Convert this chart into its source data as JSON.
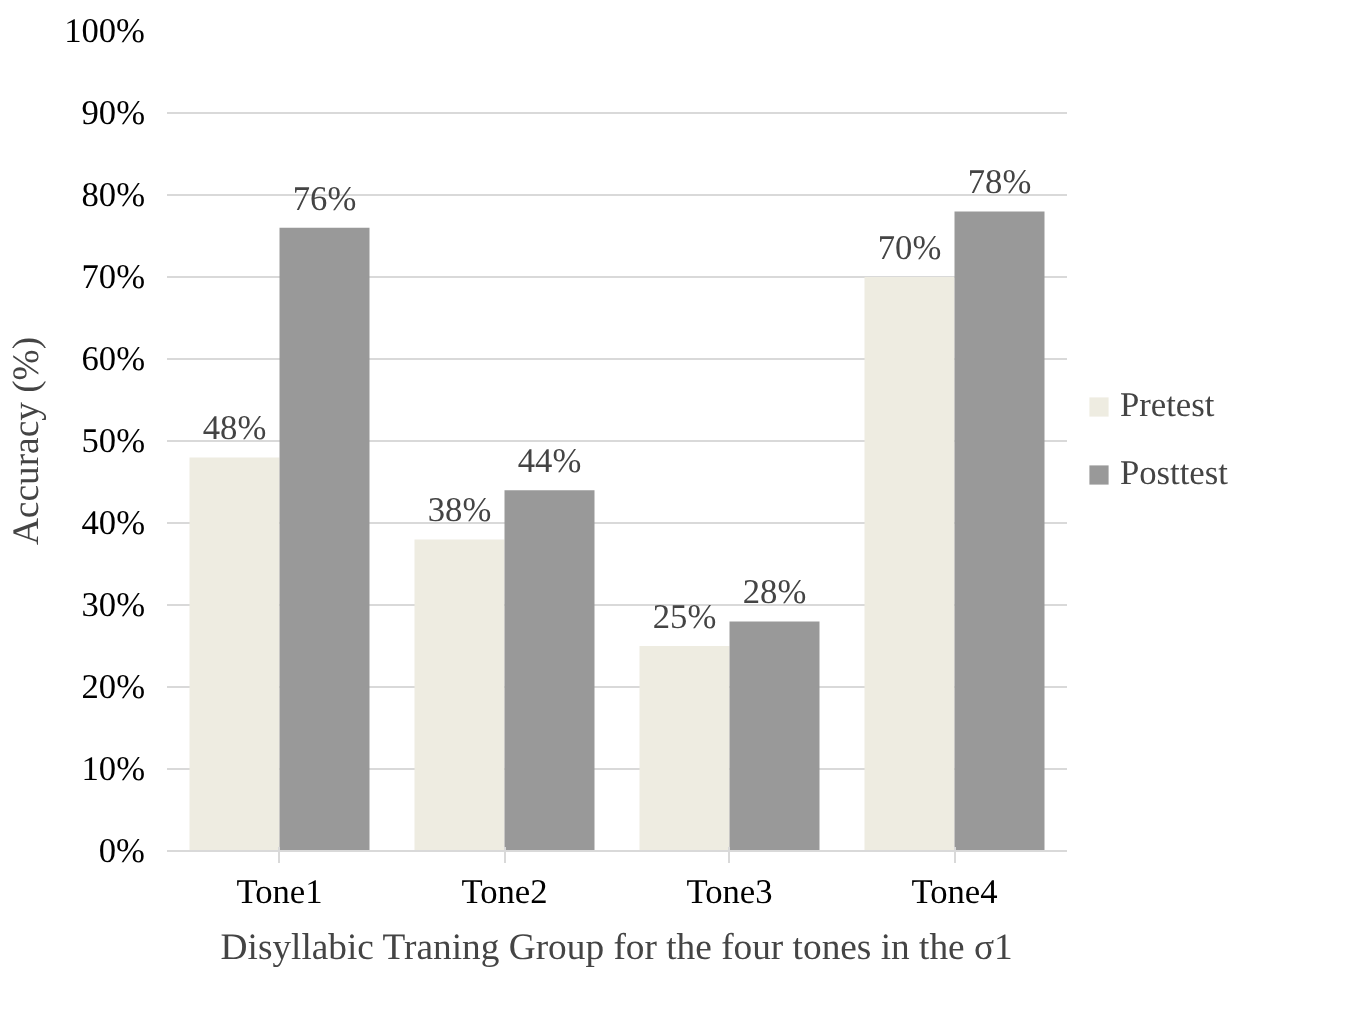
{
  "chart_data": {
    "type": "bar",
    "xlabel": "Disyllabic Traning Group for the four tones in the σ1",
    "ylabel": "Accuracy (%)",
    "categories": [
      "Tone1",
      "Tone2",
      "Tone3",
      "Tone4"
    ],
    "series": [
      {
        "name": "Pretest",
        "color": "#eeece1",
        "values": [
          48,
          38,
          25,
          70
        ],
        "value_labels": [
          "48%",
          "38%",
          "25%",
          "70%"
        ]
      },
      {
        "name": "Posttest",
        "color": "#999999",
        "values": [
          76,
          44,
          28,
          78
        ],
        "value_labels": [
          "76%",
          "44%",
          "28%",
          "78%"
        ]
      }
    ],
    "ylim": [
      0,
      100
    ],
    "yticks": [
      {
        "value": 0,
        "label": "0%"
      },
      {
        "value": 10,
        "label": "10%"
      },
      {
        "value": 20,
        "label": "20%"
      },
      {
        "value": 30,
        "label": "30%"
      },
      {
        "value": 40,
        "label": "40%"
      },
      {
        "value": 50,
        "label": "50%"
      },
      {
        "value": 60,
        "label": "60%"
      },
      {
        "value": 70,
        "label": "70%"
      },
      {
        "value": 80,
        "label": "80%"
      },
      {
        "value": 90,
        "label": "90%"
      },
      {
        "value": 100,
        "label": "100%"
      }
    ],
    "grid": "y",
    "legend": "right"
  }
}
